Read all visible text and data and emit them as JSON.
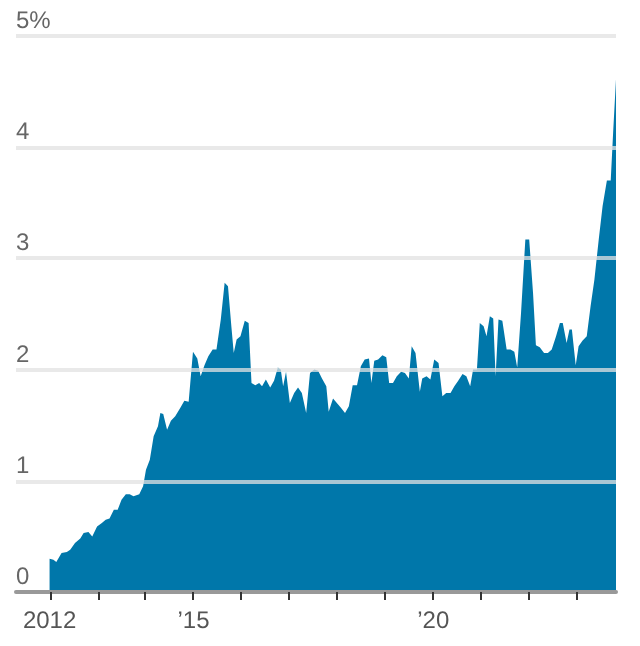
{
  "chart_data": {
    "type": "area",
    "color": "#0077aa",
    "grid": "y",
    "xlim": [
      2011.3,
      2023.81
    ],
    "xticks": [
      {
        "value": 2012,
        "label": "2012"
      },
      {
        "value": 2013,
        "label": null
      },
      {
        "value": 2014,
        "label": null
      },
      {
        "value": 2015,
        "label": "’15"
      },
      {
        "value": 2016,
        "label": null
      },
      {
        "value": 2017,
        "label": null
      },
      {
        "value": 2018,
        "label": null
      },
      {
        "value": 2019,
        "label": null
      },
      {
        "value": 2020,
        "label": "’20"
      },
      {
        "value": 2021,
        "label": null
      },
      {
        "value": 2022,
        "label": null
      },
      {
        "value": 2023,
        "label": null
      }
    ],
    "ylim": [
      0,
      5
    ],
    "yticks": [
      0,
      1,
      2,
      3,
      4,
      {
        "value": 5,
        "label": "5%"
      }
    ],
    "x": [
      2012,
      2012.08,
      2012.14,
      2012.25,
      2012.36,
      2012.43,
      2012.53,
      2012.64,
      2012.71,
      2012.81,
      2012.89,
      2012.99,
      2013.09,
      2013.17,
      2013.25,
      2013.34,
      2013.42,
      2013.5,
      2013.59,
      2013.67,
      2013.75,
      2013.87,
      2013.95,
      2014.01,
      2014.09,
      2014.17,
      2014.26,
      2014.31,
      2014.37,
      2014.45,
      2014.53,
      2014.62,
      2014.73,
      2014.81,
      2014.9,
      2014.99,
      2015.08,
      2015.15,
      2015.23,
      2015.31,
      2015.4,
      2015.48,
      2015.57,
      2015.65,
      2015.72,
      2015.79,
      2015.84,
      2015.9,
      2015.98,
      2016.07,
      2016.15,
      2016.21,
      2016.29,
      2016.37,
      2016.43,
      2016.51,
      2016.6,
      2016.68,
      2016.76,
      2016.82,
      2016.87,
      2016.93,
      2017.01,
      2017.1,
      2017.18,
      2017.26,
      2017.35,
      2017.43,
      2017.52,
      2017.6,
      2017.68,
      2017.77,
      2017.82,
      2017.91,
      2017.99,
      2018.07,
      2018.16,
      2018.24,
      2018.32,
      2018.41,
      2018.49,
      2018.57,
      2018.66,
      2018.71,
      2018.77,
      2018.85,
      2018.94,
      2019.02,
      2019.08,
      2019.16,
      2019.24,
      2019.33,
      2019.41,
      2019.49,
      2019.55,
      2019.63,
      2019.72,
      2019.77,
      2019.86,
      2019.94,
      2020.02,
      2020.11,
      2020.19,
      2020.27,
      2020.36,
      2020.44,
      2020.52,
      2020.61,
      2020.69,
      2020.77,
      2020.83,
      2020.91,
      2020.97,
      2021.05,
      2021.11,
      2021.18,
      2021.25,
      2021.3,
      2021.36,
      2021.44,
      2021.53,
      2021.61,
      2021.69,
      2021.75,
      2021.83,
      2021.92,
      2022,
      2022.08,
      2022.14,
      2022.22,
      2022.31,
      2022.39,
      2022.47,
      2022.56,
      2022.64,
      2022.7,
      2022.78,
      2022.84,
      2022.89,
      2022.97,
      2023.03,
      2023.11,
      2023.2,
      2023.28,
      2023.36,
      2023.45,
      2023.53,
      2023.62,
      2023.7,
      2023.75,
      2023.81
    ],
    "values": [
      0.3,
      0.29,
      0.27,
      0.35,
      0.36,
      0.38,
      0.44,
      0.48,
      0.53,
      0.54,
      0.5,
      0.59,
      0.62,
      0.65,
      0.66,
      0.74,
      0.74,
      0.83,
      0.88,
      0.88,
      0.86,
      0.88,
      0.95,
      1.1,
      1.19,
      1.4,
      1.49,
      1.61,
      1.6,
      1.46,
      1.54,
      1.58,
      1.66,
      1.72,
      1.71,
      2.16,
      2.1,
      1.94,
      2.04,
      2.12,
      2.18,
      2.18,
      2.45,
      2.78,
      2.75,
      2.39,
      2.15,
      2.27,
      2.3,
      2.44,
      2.42,
      1.88,
      1.86,
      1.88,
      1.85,
      1.91,
      1.84,
      1.9,
      2.02,
      2,
      1.85,
      1.98,
      1.7,
      1.79,
      1.84,
      1.79,
      1.61,
      1.97,
      2,
      1.99,
      1.92,
      1.85,
      1.62,
      1.74,
      1.7,
      1.66,
      1.61,
      1.67,
      1.86,
      1.86,
      2.03,
      2.09,
      2.1,
      1.88,
      2.08,
      2.09,
      2.13,
      2.11,
      1.88,
      1.88,
      1.94,
      1.98,
      1.97,
      1.92,
      2.21,
      2.15,
      1.8,
      1.92,
      1.94,
      1.91,
      2.09,
      2.06,
      1.76,
      1.79,
      1.79,
      1.85,
      1.9,
      1.96,
      1.94,
      1.85,
      2,
      2,
      2.42,
      2.39,
      2.3,
      2.48,
      2.46,
      1.94,
      2.45,
      2.44,
      2.18,
      2.18,
      2.16,
      2.02,
      2.51,
      3.17,
      3.17,
      2.69,
      2.22,
      2.2,
      2.15,
      2.15,
      2.18,
      2.3,
      2.42,
      2.42,
      2.24,
      2.36,
      2.36,
      2.04,
      2.21,
      2.26,
      2.3,
      2.57,
      2.81,
      3.17,
      3.47,
      3.7,
      3.7,
      4.13,
      4.61
    ]
  }
}
